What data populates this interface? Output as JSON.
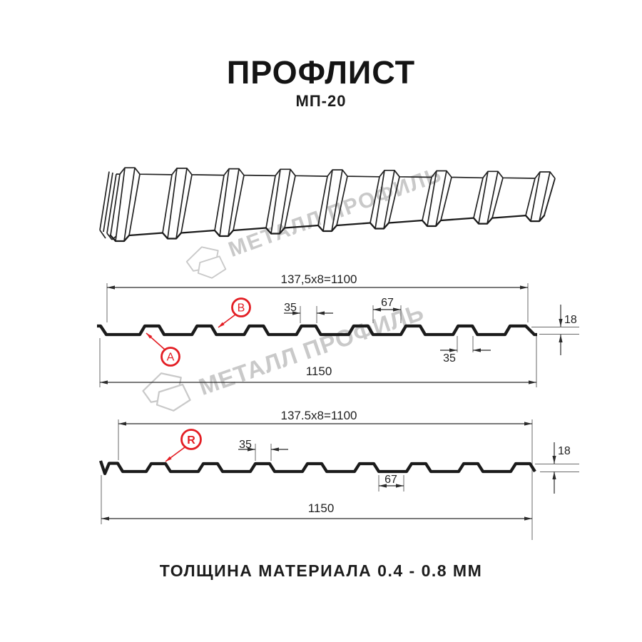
{
  "header": {
    "title": "ПРОФЛИСТ",
    "subtitle": "МП-20"
  },
  "footer": {
    "text": "ТОЛЩИНА МАТЕРИАЛА 0.4 - 0.8 ММ"
  },
  "watermark": {
    "brand_text": "МЕТАЛЛ ПРОФИЛЬ",
    "color": "#c9c9c9"
  },
  "colors": {
    "accent_red": "#e31e24",
    "line_dark": "#1b1b1b",
    "dim_line": "#2b2b2b",
    "ext_line": "#6a6a6a"
  },
  "diagram1": {
    "module_dim": "137,5x8=1100",
    "overall_dim": "1150",
    "rib_top_dim": "35",
    "valley_dim": "67",
    "height_dim": "18",
    "rib_bottom_dim": "35",
    "marker_a": "A",
    "marker_b": "B"
  },
  "diagram2": {
    "module_dim": "137.5x8=1100",
    "overall_dim": "1150",
    "rib_top_dim": "35",
    "valley_dim": "67",
    "height_dim": "18",
    "marker_r": "R"
  }
}
